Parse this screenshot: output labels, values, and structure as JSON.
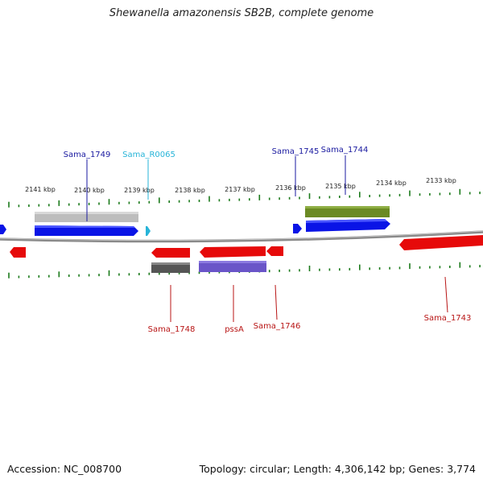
{
  "title": "Shewanella amazonensis SB2B, complete genome",
  "footer": {
    "accession": "Accession: NC_008700",
    "summary": "Topology: circular; Length: 4,306,142 bp; Genes: 3,774"
  },
  "colors": {
    "tick": "#1b7a1b",
    "backbone": "#8a8a8a",
    "forward_cds": "#0a14e6",
    "reverse_cds": "#e60a0a",
    "rna": "#27b4d8",
    "label_forward": "#1a1aa0",
    "label_reverse": "#b81414",
    "label_rna": "#27b4d8"
  },
  "kbp_labels": [
    "2141 kbp",
    "2140 kbp",
    "2139 kbp",
    "2138 kbp",
    "2137 kbp",
    "2136 kbp",
    "2135 kbp",
    "2134 kbp",
    "2133 kbp"
  ],
  "gene_labels": {
    "sama_1749": "Sama_1749",
    "sama_r0065": "Sama_R0065",
    "sama_1745": "Sama_1745",
    "sama_1744": "Sama_1744",
    "sama_1748": "Sama_1748",
    "pssa": "pssA",
    "sama_1746": "Sama_1746",
    "sama_1743": "Sama_1743"
  }
}
